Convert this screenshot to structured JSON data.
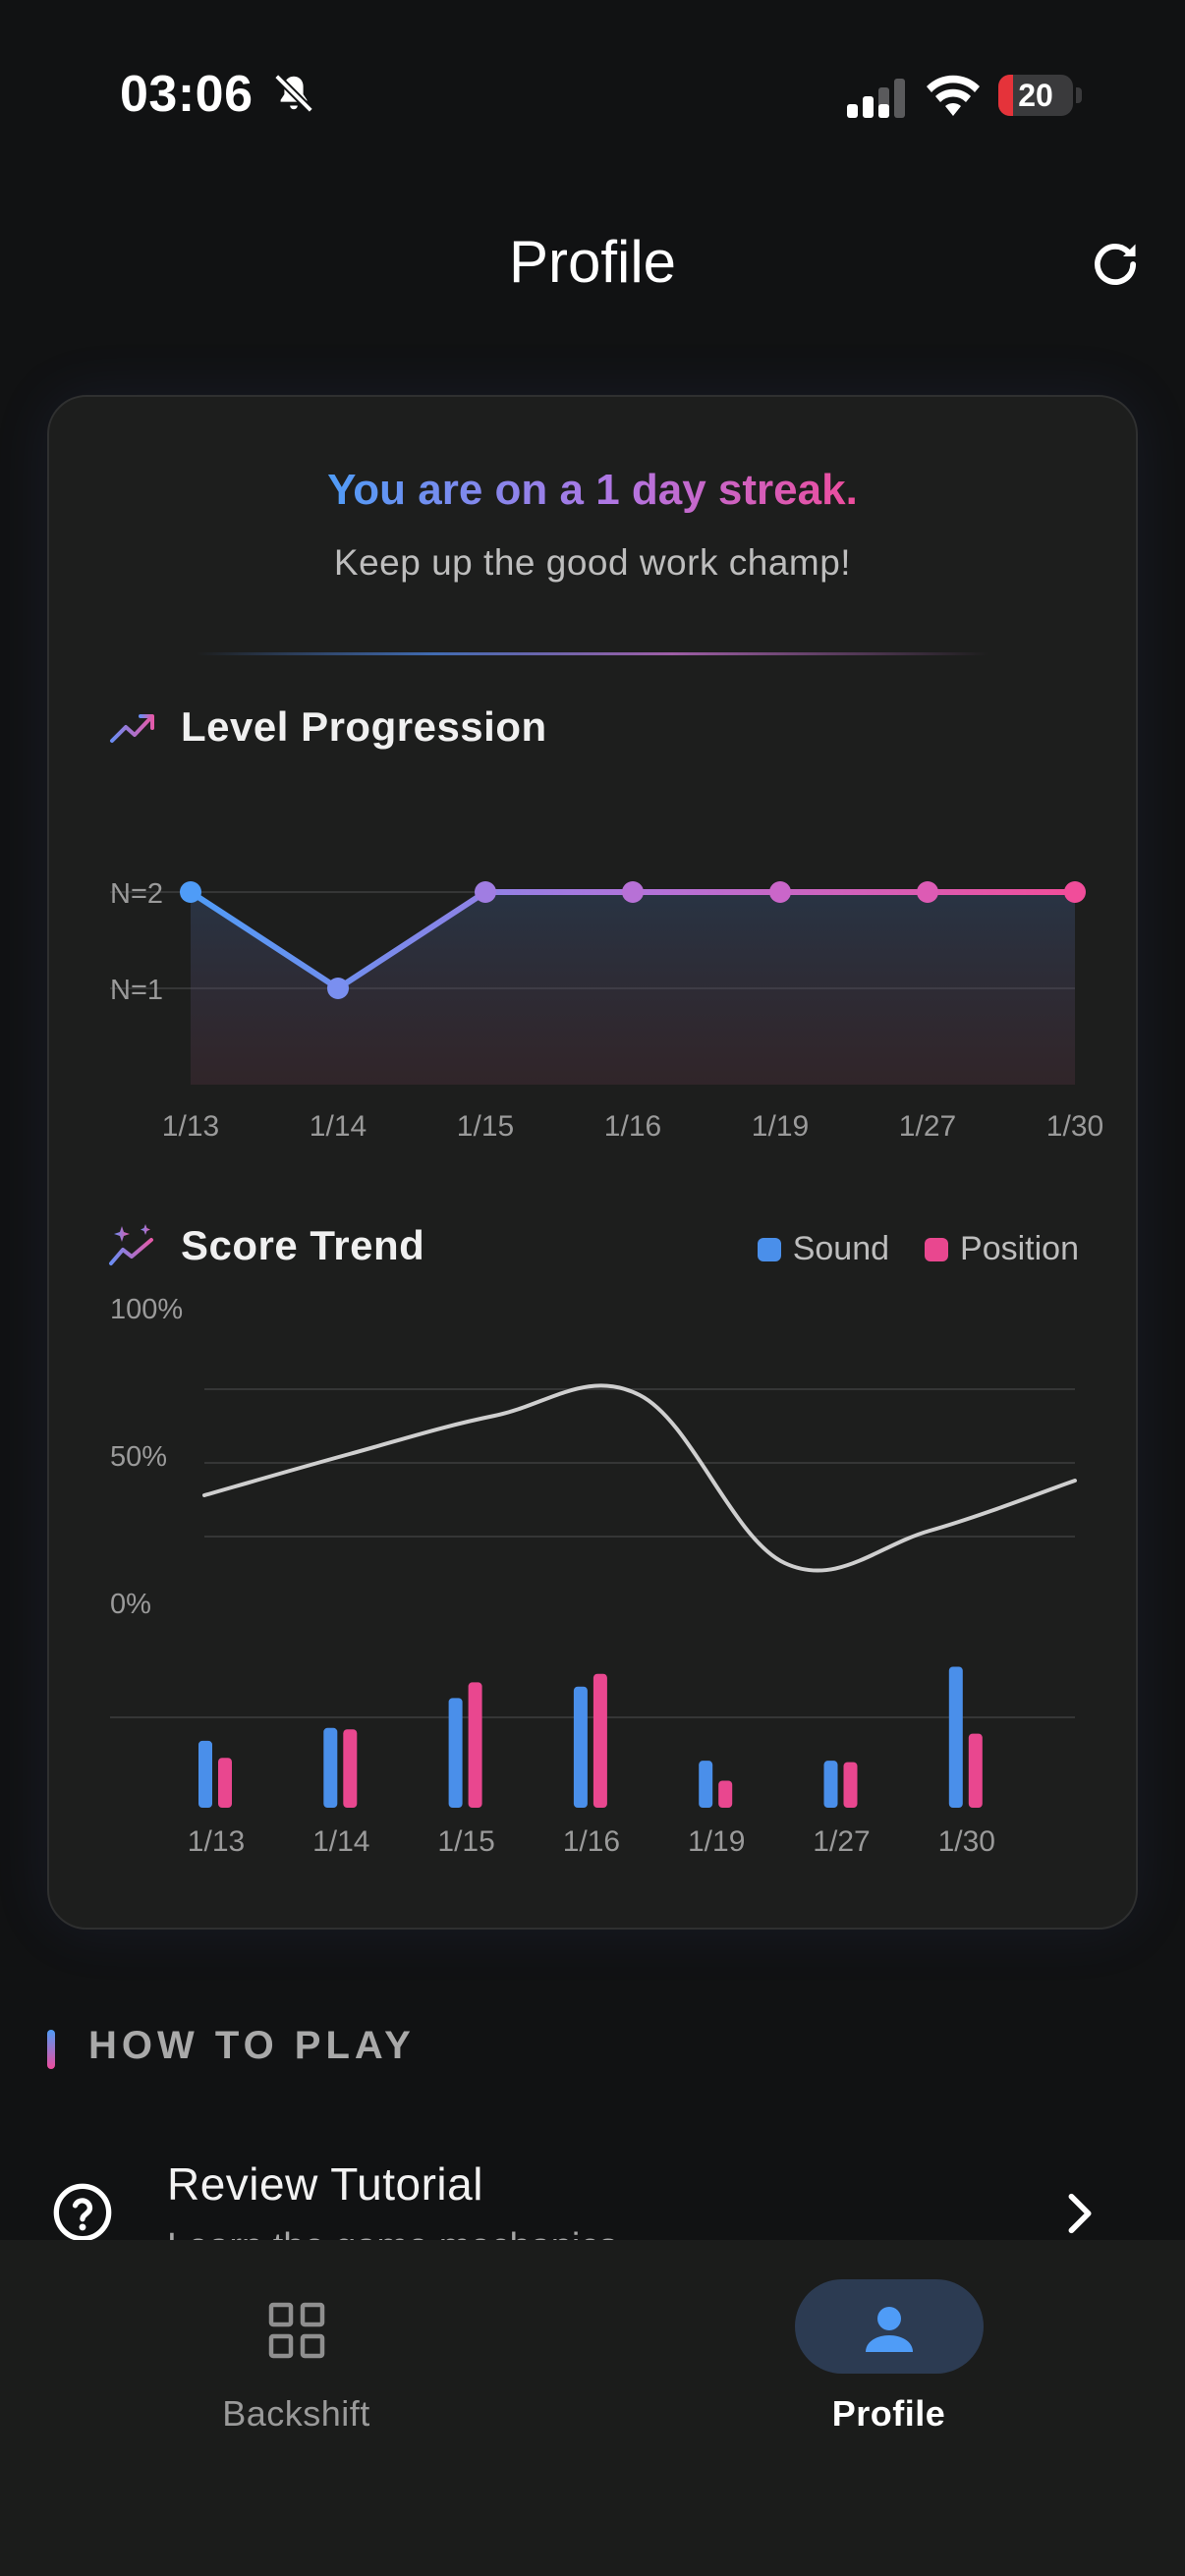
{
  "status_bar": {
    "time": "03:06",
    "battery": "20",
    "battery_level": 0.2
  },
  "header": {
    "title": "Profile"
  },
  "streak": {
    "title": "You are on a 1 day streak.",
    "subtitle": "Keep up the good work champ!"
  },
  "level_progression": {
    "title": "Level Progression",
    "y_ticks": [
      "N=2",
      "N=1"
    ],
    "x_ticks": [
      "1/13",
      "1/14",
      "1/15",
      "1/16",
      "1/19",
      "1/27",
      "1/30"
    ]
  },
  "score_trend": {
    "title": "Score Trend",
    "y_ticks": [
      "100%",
      "50%",
      "0%"
    ],
    "x_ticks": [
      "1/13",
      "1/14",
      "1/15",
      "1/16",
      "1/19",
      "1/27",
      "1/30"
    ],
    "legend": [
      {
        "name": "Sound",
        "color": "#4a8fea"
      },
      {
        "name": "Position",
        "color": "#e9478f"
      }
    ]
  },
  "chart_data": [
    {
      "type": "line",
      "title": "Level Progression",
      "x": [
        "1/13",
        "1/14",
        "1/15",
        "1/16",
        "1/19",
        "1/27",
        "1/30"
      ],
      "y": [
        2,
        1,
        2,
        2,
        2,
        2,
        2
      ],
      "y_tick_labels": [
        "N=2",
        "N=1"
      ],
      "ylim": [
        0,
        2
      ],
      "grid": true
    },
    {
      "type": "line",
      "title": "Score Trend",
      "x": [
        "1/13",
        "1/14",
        "1/15",
        "1/16",
        "1/19",
        "1/27",
        "1/30"
      ],
      "y": [
        39,
        53,
        66,
        73,
        16,
        27,
        44
      ],
      "y_tick_labels": [
        "100%",
        "50%",
        "0%"
      ],
      "grid": true
    },
    {
      "type": "bar",
      "categories": [
        "1/13",
        "1/14",
        "1/15",
        "1/16",
        "1/19",
        "1/27",
        "1/30"
      ],
      "series": [
        {
          "name": "Sound",
          "values": [
            47,
            56,
            77,
            85,
            33,
            33,
            99
          ]
        },
        {
          "name": "Position",
          "values": [
            35,
            55,
            88,
            94,
            19,
            32,
            52
          ]
        }
      ],
      "legend_position": "top-right"
    }
  ],
  "how_to_play": {
    "label": "HOW TO PLAY",
    "tutorial_title": "Review Tutorial",
    "tutorial_subtitle": "Learn the game mechanics"
  },
  "bottom_nav": {
    "items": [
      {
        "label": "Backshift",
        "active": false,
        "icon": "grid-icon"
      },
      {
        "label": "Profile",
        "active": true,
        "icon": "person-icon"
      }
    ]
  }
}
